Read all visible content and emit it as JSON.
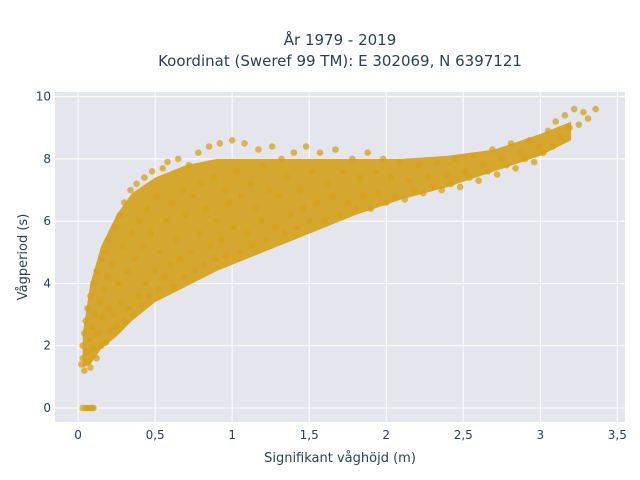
{
  "chart_data": {
    "type": "scatter",
    "title": [
      "År 1979 - 2019",
      "Koordinat (Sweref 99 TM): E 302069, N 6397121"
    ],
    "xlabel": "Signifikant våghöjd (m)",
    "ylabel": "Vågperiod (s)",
    "xlim": [
      -0.15,
      3.55
    ],
    "ylim": [
      -0.45,
      10.15
    ],
    "x_ticks": [
      0,
      0.5,
      1,
      1.5,
      2,
      2.5,
      3,
      3.5
    ],
    "x_tick_labels": [
      "0",
      "0,5",
      "1",
      "1,5",
      "2",
      "2,5",
      "3",
      "3,5"
    ],
    "y_ticks": [
      0,
      2,
      4,
      6,
      8,
      10
    ],
    "y_tick_labels": [
      "0",
      "2",
      "4",
      "6",
      "8",
      "10"
    ],
    "grid": true,
    "marker_color": "#D4A21E",
    "plot_background": "#E5E5EE",
    "points": [
      [
        0.02,
        1.4
      ],
      [
        0.03,
        1.6
      ],
      [
        0.03,
        2.0
      ],
      [
        0.04,
        2.4
      ],
      [
        0.04,
        1.2
      ],
      [
        0.05,
        2.8
      ],
      [
        0.05,
        1.8
      ],
      [
        0.06,
        3.2
      ],
      [
        0.06,
        1.5
      ],
      [
        0.07,
        2.2
      ],
      [
        0.08,
        3.6
      ],
      [
        0.08,
        1.3
      ],
      [
        0.09,
        2.6
      ],
      [
        0.1,
        4.0
      ],
      [
        0.1,
        1.9
      ],
      [
        0.11,
        3.0
      ],
      [
        0.12,
        4.4
      ],
      [
        0.12,
        1.6
      ],
      [
        0.13,
        2.4
      ],
      [
        0.14,
        3.4
      ],
      [
        0.15,
        4.8
      ],
      [
        0.15,
        2.0
      ],
      [
        0.16,
        2.9
      ],
      [
        0.17,
        3.8
      ],
      [
        0.18,
        5.0
      ],
      [
        0.18,
        2.1
      ],
      [
        0.19,
        4.2
      ],
      [
        0.2,
        3.2
      ],
      [
        0.2,
        5.4
      ],
      [
        0.21,
        2.5
      ],
      [
        0.22,
        4.6
      ],
      [
        0.23,
        3.0
      ],
      [
        0.24,
        5.8
      ],
      [
        0.25,
        2.6
      ],
      [
        0.26,
        4.0
      ],
      [
        0.27,
        6.2
      ],
      [
        0.28,
        3.4
      ],
      [
        0.29,
        5.2
      ],
      [
        0.3,
        2.8
      ],
      [
        0.3,
        6.6
      ],
      [
        0.32,
        4.4
      ],
      [
        0.33,
        3.2
      ],
      [
        0.34,
        7.0
      ],
      [
        0.35,
        5.6
      ],
      [
        0.36,
        3.0
      ],
      [
        0.37,
        4.8
      ],
      [
        0.38,
        7.2
      ],
      [
        0.39,
        3.6
      ],
      [
        0.4,
        6.0
      ],
      [
        0.41,
        3.3
      ],
      [
        0.42,
        5.2
      ],
      [
        0.43,
        7.4
      ],
      [
        0.44,
        4.0
      ],
      [
        0.45,
        6.4
      ],
      [
        0.46,
        3.6
      ],
      [
        0.47,
        5.6
      ],
      [
        0.48,
        7.6
      ],
      [
        0.5,
        4.4
      ],
      [
        0.51,
        6.8
      ],
      [
        0.52,
        3.8
      ],
      [
        0.53,
        5.0
      ],
      [
        0.55,
        7.7
      ],
      [
        0.56,
        4.2
      ],
      [
        0.57,
        6.0
      ],
      [
        0.58,
        7.9
      ],
      [
        0.6,
        4.6
      ],
      [
        0.61,
        6.6
      ],
      [
        0.62,
        3.9
      ],
      [
        0.64,
        5.4
      ],
      [
        0.65,
        8.0
      ],
      [
        0.66,
        4.8
      ],
      [
        0.68,
        7.0
      ],
      [
        0.69,
        4.2
      ],
      [
        0.7,
        6.2
      ],
      [
        0.72,
        7.8
      ],
      [
        0.73,
        5.0
      ],
      [
        0.75,
        6.8
      ],
      [
        0.76,
        4.4
      ],
      [
        0.78,
        8.2
      ],
      [
        0.79,
        5.6
      ],
      [
        0.8,
        7.2
      ],
      [
        0.82,
        4.6
      ],
      [
        0.83,
        6.4
      ],
      [
        0.85,
        8.4
      ],
      [
        0.86,
        5.2
      ],
      [
        0.88,
        7.4
      ],
      [
        0.89,
        4.8
      ],
      [
        0.9,
        6.0
      ],
      [
        0.92,
        8.5
      ],
      [
        0.93,
        5.4
      ],
      [
        0.95,
        7.0
      ],
      [
        0.96,
        4.9
      ],
      [
        0.98,
        6.6
      ],
      [
        1.0,
        8.6
      ],
      [
        1.01,
        5.8
      ],
      [
        1.03,
        7.6
      ],
      [
        1.05,
        5.0
      ],
      [
        1.06,
        6.8
      ],
      [
        1.08,
        8.5
      ],
      [
        1.1,
        5.6
      ],
      [
        1.12,
        7.2
      ],
      [
        1.13,
        5.2
      ],
      [
        1.15,
        6.4
      ],
      [
        1.17,
        8.3
      ],
      [
        1.19,
        6.0
      ],
      [
        1.2,
        7.8
      ],
      [
        1.22,
        5.4
      ],
      [
        1.24,
        7.0
      ],
      [
        1.26,
        8.4
      ],
      [
        1.28,
        5.8
      ],
      [
        1.3,
        6.8
      ],
      [
        1.32,
        8.0
      ],
      [
        1.34,
        5.6
      ],
      [
        1.36,
        7.4
      ],
      [
        1.38,
        6.2
      ],
      [
        1.4,
        8.2
      ],
      [
        1.42,
        5.8
      ],
      [
        1.44,
        7.0
      ],
      [
        1.46,
        6.4
      ],
      [
        1.48,
        8.4
      ],
      [
        1.5,
        6.0
      ],
      [
        1.52,
        7.6
      ],
      [
        1.55,
        6.6
      ],
      [
        1.57,
        8.2
      ],
      [
        1.6,
        6.0
      ],
      [
        1.62,
        7.2
      ],
      [
        1.65,
        6.8
      ],
      [
        1.67,
        8.3
      ],
      [
        1.7,
        6.2
      ],
      [
        1.72,
        7.6
      ],
      [
        1.75,
        6.6
      ],
      [
        1.78,
        8.0
      ],
      [
        1.8,
        6.4
      ],
      [
        1.83,
        7.4
      ],
      [
        1.85,
        6.8
      ],
      [
        1.88,
        8.2
      ],
      [
        1.9,
        6.4
      ],
      [
        1.93,
        7.6
      ],
      [
        1.95,
        6.9
      ],
      [
        1.98,
        8.0
      ],
      [
        2.0,
        6.6
      ],
      [
        2.03,
        7.4
      ],
      [
        2.06,
        6.8
      ],
      [
        2.09,
        7.9
      ],
      [
        2.12,
        6.7
      ],
      [
        2.15,
        7.3
      ],
      [
        2.18,
        7.0
      ],
      [
        2.21,
        7.8
      ],
      [
        2.24,
        6.9
      ],
      [
        2.27,
        7.4
      ],
      [
        2.3,
        7.1
      ],
      [
        2.33,
        7.9
      ],
      [
        2.36,
        7.0
      ],
      [
        2.39,
        7.5
      ],
      [
        2.42,
        7.2
      ],
      [
        2.45,
        8.0
      ],
      [
        2.48,
        7.1
      ],
      [
        2.51,
        7.6
      ],
      [
        2.54,
        7.4
      ],
      [
        2.57,
        8.1
      ],
      [
        2.6,
        7.3
      ],
      [
        2.63,
        7.8
      ],
      [
        2.66,
        7.6
      ],
      [
        2.69,
        8.3
      ],
      [
        2.72,
        7.5
      ],
      [
        2.75,
        8.0
      ],
      [
        2.78,
        7.8
      ],
      [
        2.81,
        8.5
      ],
      [
        2.84,
        7.7
      ],
      [
        2.87,
        8.2
      ],
      [
        2.9,
        8.0
      ],
      [
        2.93,
        8.6
      ],
      [
        2.96,
        7.9
      ],
      [
        2.99,
        8.4
      ],
      [
        3.02,
        8.2
      ],
      [
        3.05,
        8.9
      ],
      [
        3.08,
        8.4
      ],
      [
        3.1,
        9.2
      ],
      [
        3.13,
        8.7
      ],
      [
        3.16,
        9.4
      ],
      [
        3.19,
        9.0
      ],
      [
        3.22,
        9.6
      ],
      [
        3.25,
        9.1
      ],
      [
        3.28,
        9.5
      ],
      [
        3.31,
        9.3
      ],
      [
        3.36,
        9.6
      ],
      [
        0.03,
        0.0
      ],
      [
        0.05,
        0.0
      ],
      [
        0.06,
        0.0
      ],
      [
        0.08,
        0.0
      ],
      [
        0.09,
        0.0
      ],
      [
        0.1,
        0.0
      ]
    ]
  }
}
